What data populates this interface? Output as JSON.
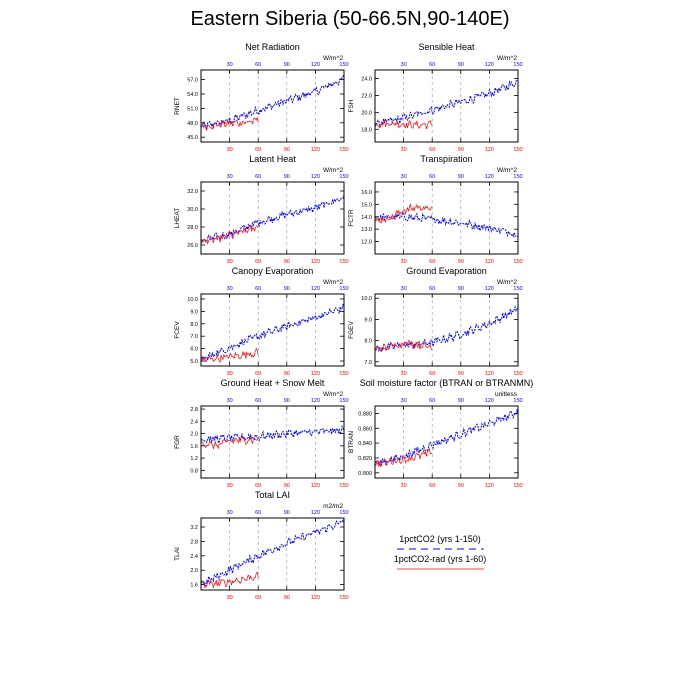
{
  "title": "Eastern Siberia (50-66.5N,90-140E)",
  "colors": {
    "series1": "#0000ff",
    "series2": "#ff0000",
    "grid": "#999999"
  },
  "legend": {
    "entries": [
      {
        "label": "1pctCO2 (yrs 1-150)",
        "color": "#0000ff",
        "style": "dashed"
      },
      {
        "label": "1pctCO2-rad (yrs 1-60)",
        "color": "#ff0000",
        "style": "solid"
      }
    ]
  },
  "chart_data": [
    {
      "type": "line",
      "title": "Net Radiation",
      "ylabel": "RNET",
      "units": "W/m^2",
      "xlim": [
        0,
        150
      ],
      "xticks": [
        30,
        60,
        90,
        120,
        150
      ],
      "ylim": [
        44,
        59
      ],
      "yticks": [
        45.0,
        48.0,
        51.0,
        54.0,
        57.0
      ],
      "ytick_labels": [
        "45.0",
        "48.0",
        "51.0",
        "54.0",
        "57.0"
      ],
      "grid_x": true,
      "legend": "none",
      "series": [
        {
          "color": "blue",
          "style": "dashed",
          "x": [
            0,
            30,
            60,
            90,
            120,
            150
          ],
          "y": [
            47.2,
            48.4,
            50.6,
            52.6,
            54.5,
            57.2
          ]
        },
        {
          "color": "red",
          "style": "solid",
          "x": [
            0,
            15,
            30,
            45,
            60
          ],
          "y": [
            47.3,
            47.5,
            47.9,
            48.1,
            48.5
          ]
        }
      ]
    },
    {
      "type": "line",
      "title": "Sensible Heat",
      "ylabel": "FSH",
      "units": "W/m^2",
      "xlim": [
        0,
        150
      ],
      "xticks": [
        30,
        60,
        90,
        120,
        150
      ],
      "ylim": [
        16.5,
        25
      ],
      "yticks": [
        18.0,
        20.0,
        22.0,
        24.0
      ],
      "ytick_labels": [
        "18.0",
        "20.0",
        "22.0",
        "24.0"
      ],
      "grid_x": true,
      "legend": "none",
      "series": [
        {
          "color": "blue",
          "style": "dashed",
          "x": [
            0,
            30,
            60,
            90,
            120,
            150
          ],
          "y": [
            18.6,
            19.3,
            20.3,
            21.2,
            22.2,
            23.6
          ]
        },
        {
          "color": "red",
          "style": "solid",
          "x": [
            0,
            15,
            30,
            45,
            60
          ],
          "y": [
            18.6,
            18.7,
            18.6,
            18.5,
            18.6
          ]
        }
      ]
    },
    {
      "type": "line",
      "title": "Latent Heat",
      "ylabel": "LHEAT",
      "units": "W/m^2",
      "xlim": [
        0,
        150
      ],
      "xticks": [
        30,
        60,
        90,
        120,
        150
      ],
      "ylim": [
        25,
        33
      ],
      "yticks": [
        26.0,
        28.0,
        30.0,
        32.0
      ],
      "ytick_labels": [
        "26.0",
        "28.0",
        "30.0",
        "32.0"
      ],
      "grid_x": true,
      "legend": "none",
      "series": [
        {
          "color": "blue",
          "style": "dashed",
          "x": [
            0,
            30,
            60,
            90,
            120,
            150
          ],
          "y": [
            26.4,
            27.2,
            28.5,
            29.4,
            30.1,
            31.3
          ]
        },
        {
          "color": "red",
          "style": "solid",
          "x": [
            0,
            15,
            30,
            45,
            60
          ],
          "y": [
            26.4,
            26.6,
            27.0,
            27.5,
            28.0
          ]
        }
      ]
    },
    {
      "type": "line",
      "title": "Transpiration",
      "ylabel": "FCTR",
      "units": "W/m^2",
      "xlim": [
        0,
        150
      ],
      "xticks": [
        30,
        60,
        90,
        120,
        150
      ],
      "ylim": [
        11,
        16.8
      ],
      "yticks": [
        12.0,
        13.0,
        14.0,
        15.0,
        16.0
      ],
      "ytick_labels": [
        "12.0",
        "13.0",
        "14.0",
        "15.0",
        "16.0"
      ],
      "grid_x": true,
      "legend": "none",
      "series": [
        {
          "color": "blue",
          "style": "dashed",
          "x": [
            0,
            30,
            60,
            90,
            120,
            150
          ],
          "y": [
            13.9,
            14.0,
            13.8,
            13.5,
            13.1,
            12.6
          ]
        },
        {
          "color": "red",
          "style": "solid",
          "x": [
            0,
            15,
            30,
            45,
            60
          ],
          "y": [
            13.6,
            13.9,
            14.5,
            14.8,
            14.6
          ]
        }
      ]
    },
    {
      "type": "line",
      "title": "Canopy Evaporation",
      "ylabel": "FCEV",
      "units": "W/m^2",
      "xlim": [
        0,
        150
      ],
      "xticks": [
        30,
        60,
        90,
        120,
        150
      ],
      "ylim": [
        4.6,
        10.4
      ],
      "yticks": [
        5.0,
        6.0,
        7.0,
        8.0,
        9.0,
        10.0
      ],
      "ytick_labels": [
        "5.0",
        "6.0",
        "7.0",
        "8.0",
        "9.0",
        "10.0"
      ],
      "grid_x": true,
      "legend": "none",
      "series": [
        {
          "color": "blue",
          "style": "dashed",
          "x": [
            0,
            30,
            60,
            90,
            120,
            150
          ],
          "y": [
            5.1,
            6.1,
            7.0,
            7.8,
            8.5,
            9.3
          ]
        },
        {
          "color": "red",
          "style": "solid",
          "x": [
            0,
            15,
            30,
            45,
            60
          ],
          "y": [
            5.1,
            5.2,
            5.35,
            5.5,
            5.7
          ]
        }
      ]
    },
    {
      "type": "line",
      "title": "Ground Evaporation",
      "ylabel": "FGEV",
      "units": "W/m^2",
      "xlim": [
        0,
        150
      ],
      "xticks": [
        30,
        60,
        90,
        120,
        150
      ],
      "ylim": [
        6.8,
        10.2
      ],
      "yticks": [
        7.0,
        8.0,
        9.0,
        10.0
      ],
      "ytick_labels": [
        "7.0",
        "8.0",
        "9.0",
        "10.0"
      ],
      "grid_x": true,
      "legend": "none",
      "series": [
        {
          "color": "blue",
          "style": "dashed",
          "x": [
            0,
            30,
            60,
            90,
            120,
            150
          ],
          "y": [
            7.6,
            7.8,
            7.9,
            8.3,
            8.8,
            9.5
          ]
        },
        {
          "color": "red",
          "style": "solid",
          "x": [
            0,
            15,
            30,
            45,
            60
          ],
          "y": [
            7.6,
            7.7,
            7.9,
            7.8,
            7.7
          ]
        }
      ]
    },
    {
      "type": "line",
      "title": "Ground Heat + Snow Melt",
      "ylabel": "FGR",
      "units": "W/m^2",
      "xlim": [
        0,
        150
      ],
      "xticks": [
        30,
        60,
        90,
        120,
        150
      ],
      "ylim": [
        0.55,
        2.9
      ],
      "yticks": [
        0.8,
        1.2,
        1.6,
        2.0,
        2.4,
        2.8
      ],
      "ytick_labels": [
        "0.8",
        "1.2",
        "1.6",
        "2.0",
        "2.4",
        "2.8"
      ],
      "grid_x": true,
      "legend": "none",
      "series": [
        {
          "color": "blue",
          "style": "dashed",
          "x": [
            0,
            30,
            60,
            90,
            120,
            150
          ],
          "y": [
            1.8,
            1.85,
            1.9,
            2.0,
            2.05,
            2.1
          ]
        },
        {
          "color": "red",
          "style": "solid",
          "x": [
            0,
            15,
            30,
            45,
            60
          ],
          "y": [
            1.7,
            1.6,
            1.75,
            1.8,
            1.8
          ]
        }
      ]
    },
    {
      "type": "line",
      "title": "Soil moisture factor (BTRAN or BTRANMN)",
      "ylabel": "BTRAN",
      "units": "unitless",
      "xlim": [
        0,
        150
      ],
      "xticks": [
        30,
        60,
        90,
        120,
        150
      ],
      "ylim": [
        0.793,
        0.89
      ],
      "yticks": [
        0.8,
        0.82,
        0.84,
        0.86,
        0.88
      ],
      "ytick_labels": [
        "0.800",
        "0.820",
        "0.840",
        "0.860",
        "0.880"
      ],
      "grid_x": true,
      "legend": "none",
      "series": [
        {
          "color": "blue",
          "style": "dashed",
          "x": [
            0,
            30,
            60,
            90,
            120,
            150
          ],
          "y": [
            0.812,
            0.822,
            0.838,
            0.852,
            0.866,
            0.882
          ]
        },
        {
          "color": "red",
          "style": "solid",
          "x": [
            0,
            15,
            30,
            45,
            60
          ],
          "y": [
            0.812,
            0.815,
            0.818,
            0.822,
            0.828
          ]
        }
      ]
    },
    {
      "type": "line",
      "title": "Total LAI",
      "ylabel": "TLAI",
      "units": "m2/m2",
      "xlim": [
        0,
        150
      ],
      "xticks": [
        30,
        60,
        90,
        120,
        150
      ],
      "ylim": [
        1.45,
        3.45
      ],
      "yticks": [
        1.6,
        2.0,
        2.4,
        2.8,
        3.2
      ],
      "ytick_labels": [
        "1.6",
        "2.0",
        "2.4",
        "2.8",
        "3.2"
      ],
      "grid_x": true,
      "legend": "none",
      "series": [
        {
          "color": "blue",
          "style": "dashed",
          "x": [
            0,
            30,
            60,
            90,
            120,
            150
          ],
          "y": [
            1.6,
            2.0,
            2.4,
            2.75,
            3.05,
            3.35
          ]
        },
        {
          "color": "red",
          "style": "solid",
          "x": [
            0,
            15,
            30,
            45,
            60
          ],
          "y": [
            1.6,
            1.62,
            1.68,
            1.75,
            1.85
          ]
        }
      ]
    }
  ]
}
